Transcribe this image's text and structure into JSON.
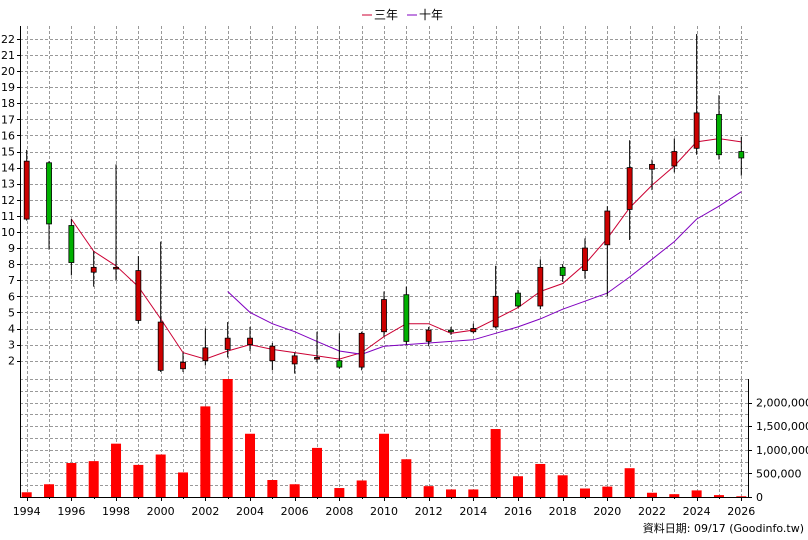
{
  "chart_data": {
    "type": "candlestick-with-volume",
    "legend": [
      {
        "name": "三年",
        "color": "#cc0033"
      },
      {
        "name": "十年",
        "color": "#8000c0"
      }
    ],
    "legend_position": "top-center",
    "grid": true,
    "price_axis": {
      "ylim": [
        0.8,
        22.8
      ],
      "ticks": [
        2,
        3,
        4,
        5,
        6,
        7,
        8,
        9,
        10,
        11,
        12,
        13,
        14,
        15,
        16,
        17,
        18,
        19,
        20,
        21,
        22
      ],
      "tick_labels": [
        "2",
        "3",
        "4",
        "5",
        "6",
        "7",
        "8",
        "9",
        "10",
        "11",
        "12",
        "13",
        "14",
        "15",
        "16",
        "17",
        "18",
        "19",
        "20",
        "21",
        "22"
      ]
    },
    "volume_axis": {
      "ylim": [
        0,
        2500000
      ],
      "ticks": [
        0,
        500000,
        1000000,
        1500000,
        2000000
      ],
      "tick_labels": [
        "0",
        "500,000",
        "1,000,000",
        "1,500,000",
        "2,000,000"
      ]
    },
    "x_axis": {
      "xlim": [
        1993.7,
        2026.3
      ],
      "ticks": [
        1994,
        1996,
        1998,
        2000,
        2002,
        2004,
        2006,
        2008,
        2010,
        2012,
        2014,
        2016,
        2018,
        2020,
        2022,
        2024,
        2026
      ],
      "tick_labels": [
        "1994",
        "1996",
        "1998",
        "2000",
        "2002",
        "2004",
        "2006",
        "2008",
        "2010",
        "2012",
        "2014",
        "2016",
        "2018",
        "2020",
        "2022",
        "2024",
        "2026"
      ]
    },
    "candles": [
      {
        "year": 1994,
        "open": 14.4,
        "high": 15.1,
        "low": 10.7,
        "close": 10.8
      },
      {
        "year": 1995,
        "open": 10.5,
        "high": 14.4,
        "low": 8.9,
        "close": 14.3
      },
      {
        "year": 1996,
        "open": 8.1,
        "high": 10.8,
        "low": 7.3,
        "close": 10.4
      },
      {
        "year": 1997,
        "open": 7.8,
        "high": 8.8,
        "low": 6.6,
        "close": 7.5
      },
      {
        "year": 1998,
        "open": 7.8,
        "high": 14.2,
        "low": 7.0,
        "close": 7.7
      },
      {
        "year": 1999,
        "open": 7.6,
        "high": 8.5,
        "low": 4.3,
        "close": 4.5
      },
      {
        "year": 2000,
        "open": 4.4,
        "high": 9.4,
        "low": 1.3,
        "close": 1.4
      },
      {
        "year": 2001,
        "open": 1.9,
        "high": 2.5,
        "low": 1.3,
        "close": 1.5
      },
      {
        "year": 2002,
        "open": 2.8,
        "high": 4.0,
        "low": 1.7,
        "close": 2.0
      },
      {
        "year": 2003,
        "open": 3.4,
        "high": 4.4,
        "low": 2.2,
        "close": 2.7
      },
      {
        "year": 2004,
        "open": 3.4,
        "high": 4.1,
        "low": 2.6,
        "close": 3.0
      },
      {
        "year": 2005,
        "open": 2.9,
        "high": 3.1,
        "low": 1.4,
        "close": 2.0
      },
      {
        "year": 2006,
        "open": 2.3,
        "high": 2.5,
        "low": 1.2,
        "close": 1.8
      },
      {
        "year": 2007,
        "open": 2.2,
        "high": 3.8,
        "low": 1.9,
        "close": 2.1
      },
      {
        "year": 2008,
        "open": 1.6,
        "high": 3.7,
        "low": 1.5,
        "close": 2.0
      },
      {
        "year": 2009,
        "open": 3.7,
        "high": 3.8,
        "low": 1.4,
        "close": 1.6
      },
      {
        "year": 2010,
        "open": 5.8,
        "high": 6.3,
        "low": 3.5,
        "close": 3.8
      },
      {
        "year": 2011,
        "open": 3.2,
        "high": 6.6,
        "low": 3.0,
        "close": 6.1
      },
      {
        "year": 2012,
        "open": 3.9,
        "high": 4.1,
        "low": 2.9,
        "close": 3.2
      },
      {
        "year": 2013,
        "open": 3.8,
        "high": 4.1,
        "low": 3.6,
        "close": 3.9
      },
      {
        "year": 2014,
        "open": 4.0,
        "high": 4.3,
        "low": 3.7,
        "close": 3.8
      },
      {
        "year": 2015,
        "open": 6.0,
        "high": 7.9,
        "low": 4.0,
        "close": 4.1
      },
      {
        "year": 2016,
        "open": 5.4,
        "high": 6.4,
        "low": 5.3,
        "close": 6.2
      },
      {
        "year": 2017,
        "open": 7.8,
        "high": 8.3,
        "low": 5.2,
        "close": 5.4
      },
      {
        "year": 2018,
        "open": 7.3,
        "high": 8.0,
        "low": 6.9,
        "close": 7.8
      },
      {
        "year": 2019,
        "open": 9.0,
        "high": 9.6,
        "low": 7.1,
        "close": 7.6
      },
      {
        "year": 2020,
        "open": 11.3,
        "high": 11.6,
        "low": 6.0,
        "close": 9.2
      },
      {
        "year": 2021,
        "open": 14.0,
        "high": 15.7,
        "low": 9.5,
        "close": 11.4
      },
      {
        "year": 2022,
        "open": 14.2,
        "high": 14.5,
        "low": 12.6,
        "close": 13.9
      },
      {
        "year": 2023,
        "open": 15.0,
        "high": 15.8,
        "low": 13.7,
        "close": 14.1
      },
      {
        "year": 2024,
        "open": 17.4,
        "high": 22.3,
        "low": 14.8,
        "close": 15.2
      },
      {
        "year": 2025,
        "open": 14.8,
        "high": 18.5,
        "low": 14.5,
        "close": 17.3
      },
      {
        "year": 2026,
        "open": 14.6,
        "high": 15.9,
        "low": 13.5,
        "close": 15.0
      }
    ],
    "series": [
      {
        "name": "三年",
        "x": [
          1996,
          1997,
          1998,
          1999,
          2000,
          2001,
          2002,
          2003,
          2004,
          2005,
          2006,
          2007,
          2008,
          2009,
          2010,
          2011,
          2012,
          2013,
          2014,
          2015,
          2016,
          2017,
          2018,
          2019,
          2020,
          2021,
          2022,
          2023,
          2024,
          2025,
          2026
        ],
        "values": [
          10.8,
          8.8,
          7.9,
          6.6,
          4.6,
          2.5,
          2.1,
          2.6,
          3.0,
          2.7,
          2.5,
          2.3,
          2.1,
          2.5,
          3.5,
          4.3,
          4.3,
          3.7,
          3.9,
          4.6,
          5.3,
          6.3,
          6.8,
          8.0,
          9.6,
          11.5,
          12.9,
          14.1,
          15.6,
          15.8,
          15.6
        ]
      },
      {
        "name": "十年",
        "x": [
          2003,
          2004,
          2005,
          2006,
          2007,
          2008,
          2009,
          2010,
          2011,
          2012,
          2013,
          2014,
          2015,
          2016,
          2017,
          2018,
          2019,
          2020,
          2021,
          2022,
          2023,
          2024,
          2025,
          2026
        ],
        "values": [
          6.3,
          5.0,
          4.3,
          3.8,
          3.2,
          2.6,
          2.4,
          2.9,
          3.0,
          3.1,
          3.2,
          3.3,
          3.7,
          4.1,
          4.6,
          5.2,
          5.7,
          6.2,
          7.2,
          8.3,
          9.4,
          10.8,
          11.6,
          12.5
        ]
      }
    ],
    "volume": {
      "x": [
        1994,
        1995,
        1996,
        1997,
        1998,
        1999,
        2000,
        2001,
        2002,
        2003,
        2004,
        2005,
        2006,
        2007,
        2008,
        2009,
        2010,
        2011,
        2012,
        2013,
        2014,
        2015,
        2016,
        2017,
        2018,
        2019,
        2020,
        2021,
        2022,
        2023,
        2024,
        2025,
        2026
      ],
      "values": [
        100000,
        270000,
        720000,
        760000,
        1130000,
        680000,
        900000,
        520000,
        1920000,
        2500000,
        1340000,
        360000,
        270000,
        1040000,
        190000,
        350000,
        1340000,
        800000,
        230000,
        160000,
        160000,
        1440000,
        440000,
        700000,
        460000,
        180000,
        220000,
        610000,
        90000,
        60000,
        140000,
        40000,
        15000
      ],
      "color": "#ff0000"
    },
    "colors": {
      "up": "#00b000",
      "down": "#cc0000",
      "wick": "#000000"
    },
    "source_label": "資料日期: 09/17  (Goodinfo.tw)"
  }
}
